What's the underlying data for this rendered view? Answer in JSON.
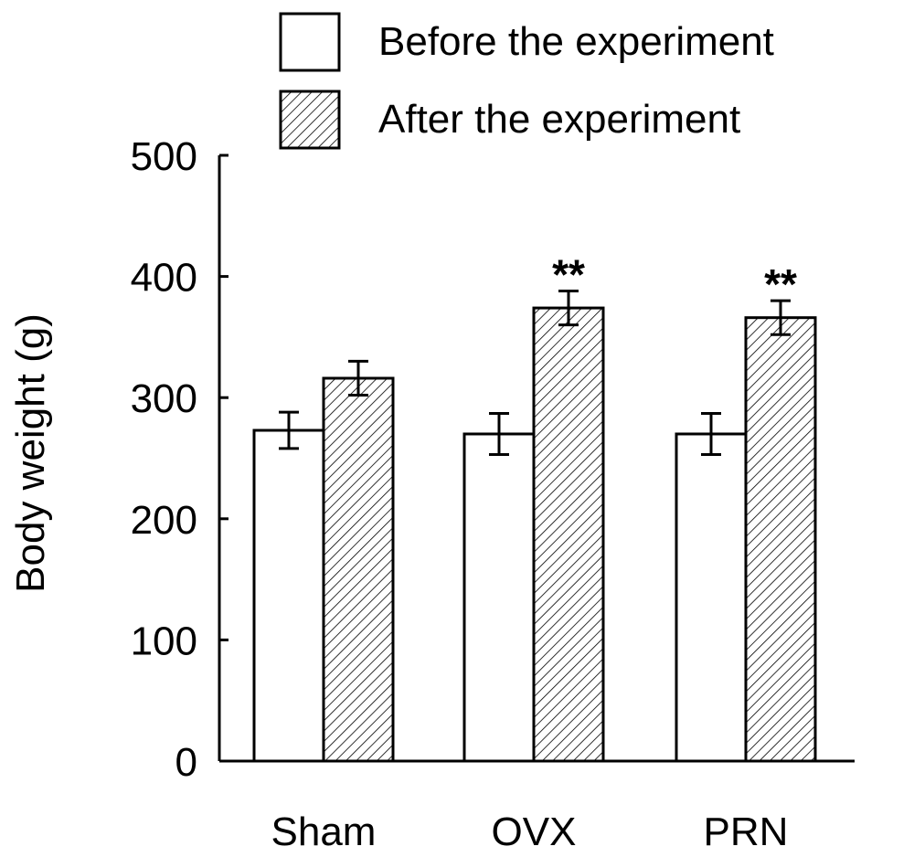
{
  "chart_data": {
    "type": "bar",
    "categories": [
      "Sham",
      "OVX",
      "PRN"
    ],
    "series": [
      {
        "name": "Before the experiment",
        "values": [
          273,
          270,
          270
        ],
        "errors": [
          15,
          17,
          17
        ],
        "fill": "#ffffff"
      },
      {
        "name": "After the experiment",
        "values": [
          316,
          374,
          366
        ],
        "errors": [
          14,
          14,
          14
        ],
        "fill": "hatched"
      }
    ],
    "annotations": [
      "",
      "**",
      "**"
    ],
    "title": "",
    "xlabel": "",
    "ylabel": "Body weight (g)",
    "ylim": [
      0,
      500
    ],
    "yticks": [
      "0",
      "100",
      "200",
      "300",
      "400",
      "500"
    ],
    "grid": false,
    "legend_position": "top-right",
    "colors": {
      "stroke": "#000000",
      "background": "#ffffff"
    }
  }
}
